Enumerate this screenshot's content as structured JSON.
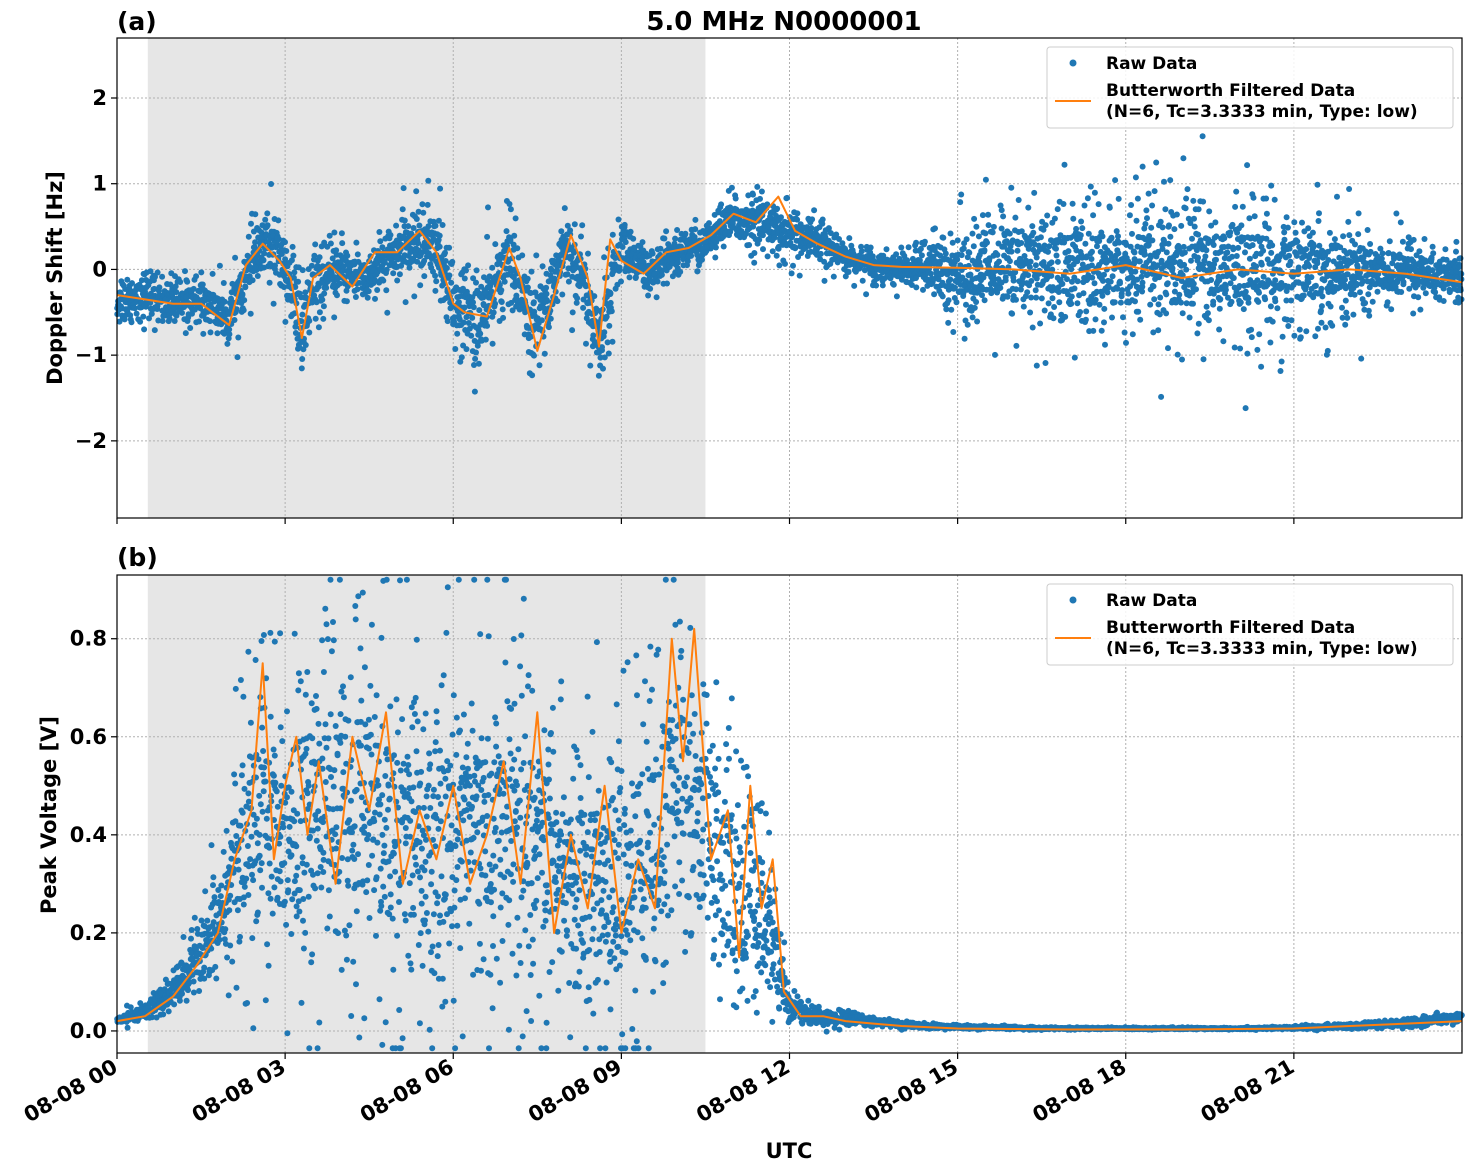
{
  "chart_data": [
    {
      "type": "scatter",
      "panel_label": "(a)",
      "title": "5.0 MHz N0000001",
      "ylabel": "Doppler Shift [Hz]",
      "xlabel": "",
      "xlim": [
        0,
        24
      ],
      "ylim": [
        -2.9,
        2.7
      ],
      "yticks": [
        -2,
        -1,
        0,
        1,
        2
      ],
      "ytick_labels": [
        "−2",
        "−1",
        "0",
        "1",
        "2"
      ],
      "xticks": [
        0,
        3,
        6,
        9,
        12,
        15,
        18,
        21
      ],
      "xtick_labels": [
        "",
        "",
        "",
        "",
        "",
        "",
        "",
        ""
      ],
      "shaded_span": [
        0.55,
        10.5
      ],
      "grid": true,
      "legend_position": "top-right",
      "legend": [
        "Raw Data",
        "Butterworth Filtered Data\n(N=6, Tc=3.3333 min, Type: low)"
      ],
      "series": [
        {
          "name": "Raw Data",
          "kind": "scatter",
          "color": "#1f77b4",
          "x": [
            0,
            0.5,
            1,
            1.5,
            2,
            2.5,
            2.7,
            3,
            3.3,
            3.5,
            4,
            4.5,
            5,
            5.5,
            5.7,
            6,
            6.5,
            7,
            7.2,
            7.5,
            8,
            8.3,
            8.6,
            9,
            9.5,
            10,
            10.5,
            11,
            11.5,
            12,
            12.5,
            13,
            13.5,
            14,
            15,
            16,
            17,
            18,
            19,
            20,
            21,
            22,
            23,
            24
          ],
          "y": [
            -0.35,
            -0.3,
            -0.4,
            -0.35,
            -0.55,
            0.2,
            0.3,
            0.05,
            -0.7,
            -0.2,
            0.0,
            -0.1,
            0.2,
            0.35,
            0.3,
            -0.4,
            -0.6,
            0.2,
            -0.3,
            -0.7,
            0.3,
            -0.1,
            -0.85,
            0.3,
            -0.1,
            0.2,
            0.3,
            0.6,
            0.55,
            0.4,
            0.3,
            0.15,
            0.05,
            0.0,
            0.0,
            0.0,
            0.0,
            0.0,
            0.0,
            0.0,
            0.0,
            0.0,
            0.0,
            -0.1
          ],
          "spread": [
            0.3,
            0.3,
            0.3,
            0.3,
            0.35,
            0.4,
            0.5,
            0.4,
            0.8,
            0.4,
            0.35,
            0.35,
            0.4,
            0.5,
            0.6,
            0.5,
            0.7,
            0.5,
            0.6,
            0.6,
            0.5,
            0.6,
            0.6,
            0.4,
            0.3,
            0.3,
            0.25,
            0.3,
            0.35,
            0.35,
            0.3,
            0.2,
            0.2,
            0.2,
            0.6,
            0.8,
            0.9,
            0.9,
            0.9,
            0.9,
            0.8,
            0.6,
            0.4,
            0.35
          ]
        },
        {
          "name": "Butterworth Filtered Data\n(N=6, Tc=3.3333 min, Type: low)",
          "kind": "line",
          "color": "#ff7f0e",
          "x": [
            0,
            0.5,
            1,
            1.5,
            2,
            2.3,
            2.6,
            2.9,
            3.1,
            3.3,
            3.5,
            3.8,
            4.2,
            4.6,
            5.0,
            5.4,
            5.7,
            6.0,
            6.2,
            6.6,
            7.0,
            7.2,
            7.5,
            7.8,
            8.1,
            8.4,
            8.6,
            8.8,
            9.0,
            9.4,
            9.8,
            10.2,
            10.6,
            11.0,
            11.4,
            11.8,
            12.1,
            12.5,
            13.0,
            13.5,
            14,
            15,
            16,
            17,
            18,
            19,
            20,
            21,
            22,
            23,
            24
          ],
          "y": [
            -0.3,
            -0.35,
            -0.4,
            -0.4,
            -0.65,
            0.05,
            0.3,
            0.1,
            -0.1,
            -0.8,
            -0.1,
            0.05,
            -0.2,
            0.2,
            0.2,
            0.45,
            0.2,
            -0.4,
            -0.5,
            -0.55,
            0.25,
            -0.1,
            -0.95,
            -0.3,
            0.4,
            -0.1,
            -0.9,
            0.35,
            0.1,
            -0.05,
            0.2,
            0.25,
            0.4,
            0.65,
            0.55,
            0.85,
            0.45,
            0.3,
            0.15,
            0.05,
            0.03,
            0.02,
            0.0,
            -0.05,
            0.05,
            -0.1,
            0.0,
            -0.05,
            0.0,
            -0.05,
            -0.15
          ]
        }
      ]
    },
    {
      "type": "scatter",
      "panel_label": "(b)",
      "title": "",
      "ylabel": "Peak Voltage [V]",
      "xlabel": "UTC",
      "xlim": [
        0,
        24
      ],
      "ylim": [
        -0.045,
        0.93
      ],
      "yticks": [
        0.0,
        0.2,
        0.4,
        0.6,
        0.8
      ],
      "ytick_labels": [
        "0.0",
        "0.2",
        "0.4",
        "0.6",
        "0.8"
      ],
      "xticks": [
        0,
        3,
        6,
        9,
        12,
        15,
        18,
        21
      ],
      "xtick_labels": [
        "08-08 00",
        "08-08 03",
        "08-08 06",
        "08-08 09",
        "08-08 12",
        "08-08 15",
        "08-08 18",
        "08-08 21"
      ],
      "shaded_span": [
        0.55,
        10.5
      ],
      "grid": true,
      "legend_position": "top-right",
      "legend": [
        "Raw Data",
        "Butterworth Filtered Data\n(N=6, Tc=3.3333 min, Type: low)"
      ],
      "series": [
        {
          "name": "Raw Data",
          "kind": "scatter",
          "color": "#1f77b4",
          "x": [
            0,
            0.5,
            1,
            1.5,
            2,
            2.5,
            3,
            3.5,
            4,
            4.5,
            5,
            5.5,
            6,
            6.5,
            7,
            7.5,
            8,
            8.5,
            9,
            9.5,
            10,
            10.5,
            11,
            11.5,
            11.8,
            12,
            12.5,
            13,
            13.5,
            14,
            15,
            16,
            17,
            18,
            19,
            20,
            21,
            22,
            23,
            24
          ],
          "y": [
            0.02,
            0.04,
            0.08,
            0.15,
            0.3,
            0.45,
            0.4,
            0.45,
            0.45,
            0.45,
            0.4,
            0.4,
            0.42,
            0.4,
            0.42,
            0.38,
            0.32,
            0.32,
            0.3,
            0.35,
            0.55,
            0.4,
            0.3,
            0.25,
            0.15,
            0.05,
            0.03,
            0.025,
            0.02,
            0.012,
            0.008,
            0.006,
            0.005,
            0.005,
            0.005,
            0.005,
            0.006,
            0.01,
            0.015,
            0.03
          ],
          "spread": [
            0.01,
            0.02,
            0.05,
            0.1,
            0.18,
            0.35,
            0.35,
            0.4,
            0.4,
            0.4,
            0.4,
            0.4,
            0.38,
            0.38,
            0.4,
            0.38,
            0.35,
            0.35,
            0.35,
            0.4,
            0.3,
            0.35,
            0.3,
            0.25,
            0.12,
            0.03,
            0.02,
            0.015,
            0.01,
            0.006,
            0.004,
            0.003,
            0.002,
            0.002,
            0.002,
            0.002,
            0.003,
            0.006,
            0.008,
            0.01
          ]
        },
        {
          "name": "Butterworth Filtered Data\n(N=6, Tc=3.3333 min, Type: low)",
          "kind": "line",
          "color": "#ff7f0e",
          "x": [
            0,
            0.5,
            1,
            1.4,
            1.8,
            2.1,
            2.4,
            2.6,
            2.8,
            3.0,
            3.2,
            3.4,
            3.6,
            3.9,
            4.2,
            4.5,
            4.8,
            5.1,
            5.4,
            5.7,
            6.0,
            6.3,
            6.6,
            6.9,
            7.2,
            7.5,
            7.8,
            8.1,
            8.4,
            8.7,
            9.0,
            9.3,
            9.6,
            9.9,
            10.1,
            10.3,
            10.6,
            10.9,
            11.1,
            11.3,
            11.5,
            11.7,
            11.9,
            12.2,
            12.6,
            13.0,
            13.5,
            14,
            15,
            16,
            17,
            18,
            19,
            20,
            21,
            22,
            23,
            24
          ],
          "y": [
            0.02,
            0.03,
            0.07,
            0.13,
            0.2,
            0.35,
            0.45,
            0.75,
            0.35,
            0.5,
            0.6,
            0.4,
            0.55,
            0.3,
            0.6,
            0.45,
            0.65,
            0.3,
            0.45,
            0.35,
            0.5,
            0.3,
            0.4,
            0.55,
            0.3,
            0.65,
            0.2,
            0.4,
            0.25,
            0.5,
            0.2,
            0.35,
            0.25,
            0.8,
            0.55,
            0.82,
            0.35,
            0.45,
            0.15,
            0.5,
            0.25,
            0.35,
            0.08,
            0.03,
            0.03,
            0.02,
            0.015,
            0.01,
            0.005,
            0.004,
            0.003,
            0.003,
            0.003,
            0.004,
            0.005,
            0.01,
            0.015,
            0.02
          ]
        }
      ]
    }
  ]
}
